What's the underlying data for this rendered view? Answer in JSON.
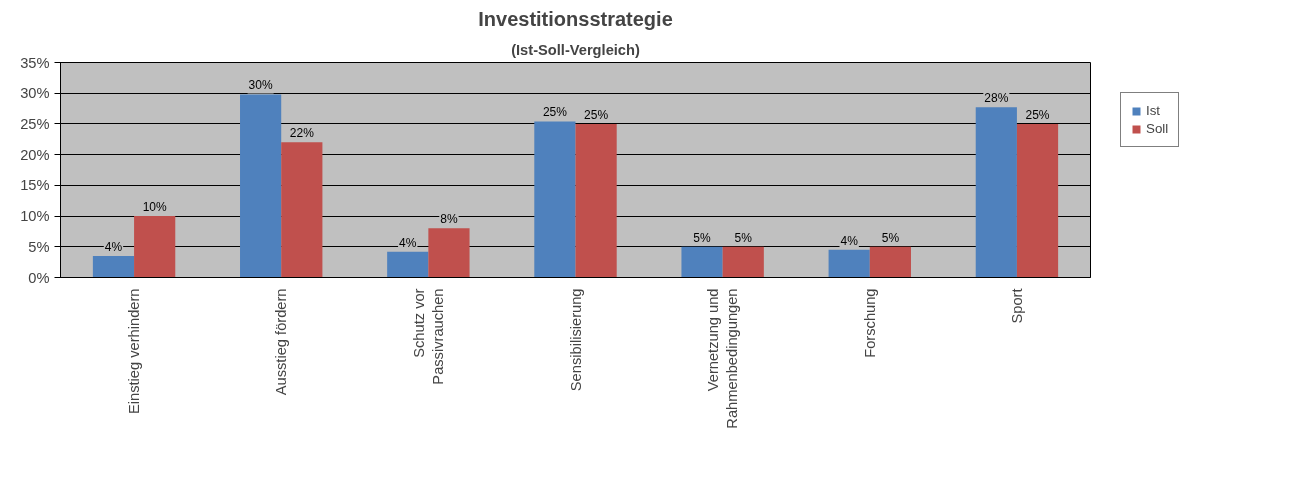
{
  "chart_data": {
    "type": "bar",
    "title": "Investitionsstrategie",
    "subtitle": "(Ist-Soll-Vergleich)",
    "categories": [
      "Einstieg verhindern",
      "Ausstieg fördern",
      "Schutz vor Passivrauchen",
      "Sensibilisierung",
      "Vernetzung und Rahmenbedingungen",
      "Forschung",
      "Sport"
    ],
    "series": [
      {
        "name": "Ist",
        "color": "#4f81bd",
        "values": [
          3.5,
          29.8,
          4.2,
          25.4,
          5.0,
          4.5,
          27.7
        ],
        "value_labels": [
          "4%",
          "30%",
          "4%",
          "25%",
          "5%",
          "4%",
          "28%"
        ]
      },
      {
        "name": "Soll",
        "color": "#c0504d",
        "values": [
          10,
          22,
          8,
          25,
          5,
          5,
          25
        ],
        "value_labels": [
          "10%",
          "22%",
          "8%",
          "25%",
          "5%",
          "5%",
          "25%"
        ]
      }
    ],
    "ylim": [
      0,
      35
    ],
    "yticks": [
      {
        "value": 0,
        "label": "0%"
      },
      {
        "value": 5,
        "label": "5%"
      },
      {
        "value": 10,
        "label": "10%"
      },
      {
        "value": 15,
        "label": "15%"
      },
      {
        "value": 20,
        "label": "20%"
      },
      {
        "value": 25,
        "label": "25%"
      },
      {
        "value": 30,
        "label": "30%"
      },
      {
        "value": 35,
        "label": "35%"
      }
    ],
    "grid": "y",
    "legend": "right"
  }
}
